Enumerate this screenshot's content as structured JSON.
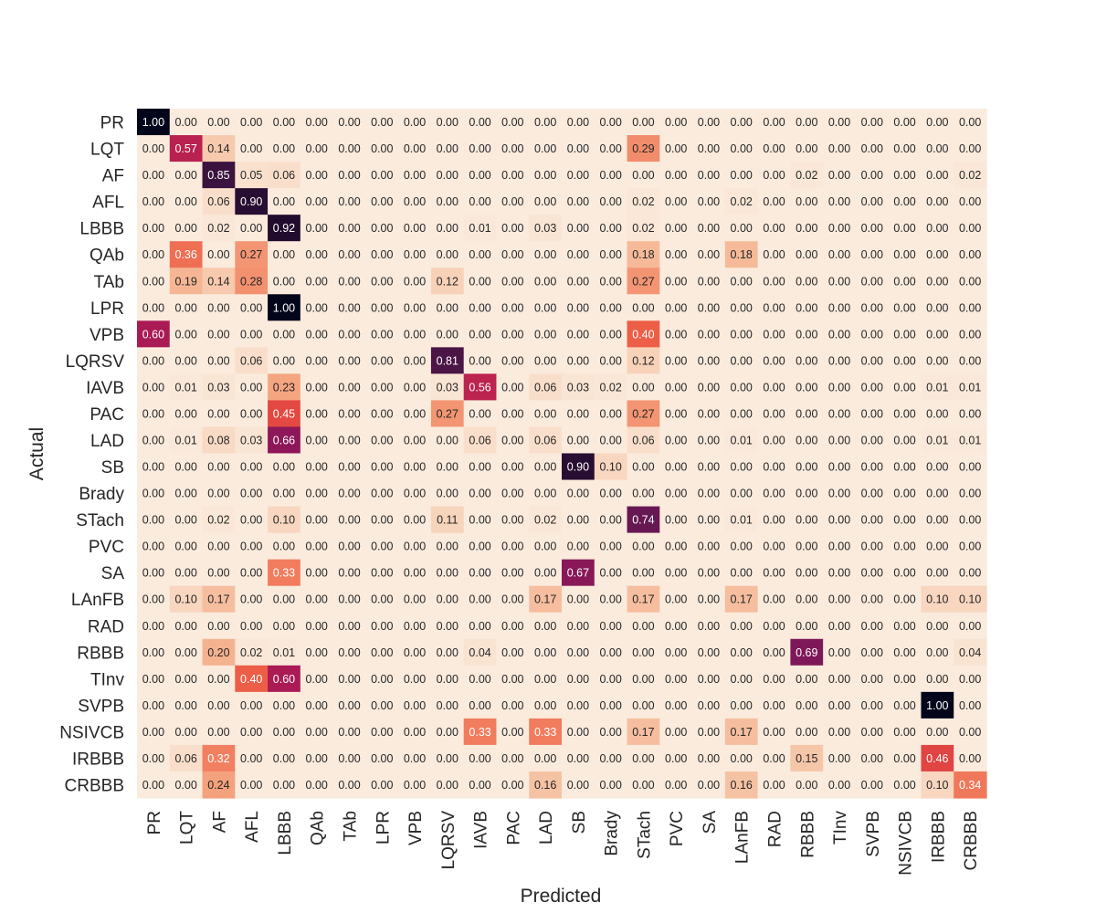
{
  "chart_data": {
    "type": "heatmap",
    "title": "",
    "xlabel": "Predicted",
    "ylabel": "Actual",
    "categories": [
      "PR",
      "LQT",
      "AF",
      "AFL",
      "LBBB",
      "QAb",
      "TAb",
      "LPR",
      "VPB",
      "LQRSV",
      "IAVB",
      "PAC",
      "LAD",
      "SB",
      "Brady",
      "STach",
      "PVC",
      "SA",
      "LAnFB",
      "RAD",
      "RBBB",
      "TInv",
      "SVPB",
      "NSIVCB",
      "IRBBB",
      "CRBBB"
    ],
    "value_range": [
      0,
      1
    ],
    "colormap": "rocket",
    "grid": false,
    "colorbar": false,
    "matrix": [
      [
        1.0,
        0.0,
        0.0,
        0.0,
        0.0,
        0.0,
        0.0,
        0.0,
        0.0,
        0.0,
        0.0,
        0.0,
        0.0,
        0.0,
        0.0,
        0.0,
        0.0,
        0.0,
        0.0,
        0.0,
        0.0,
        0.0,
        0.0,
        0.0,
        0.0,
        0.0
      ],
      [
        0.0,
        0.57,
        0.14,
        0.0,
        0.0,
        0.0,
        0.0,
        0.0,
        0.0,
        0.0,
        0.0,
        0.0,
        0.0,
        0.0,
        0.0,
        0.29,
        0.0,
        0.0,
        0.0,
        0.0,
        0.0,
        0.0,
        0.0,
        0.0,
        0.0,
        0.0
      ],
      [
        0.0,
        0.0,
        0.85,
        0.05,
        0.06,
        0.0,
        0.0,
        0.0,
        0.0,
        0.0,
        0.0,
        0.0,
        0.0,
        0.0,
        0.0,
        0.0,
        0.0,
        0.0,
        0.0,
        0.0,
        0.02,
        0.0,
        0.0,
        0.0,
        0.0,
        0.02
      ],
      [
        0.0,
        0.0,
        0.06,
        0.9,
        0.0,
        0.0,
        0.0,
        0.0,
        0.0,
        0.0,
        0.0,
        0.0,
        0.0,
        0.0,
        0.0,
        0.02,
        0.0,
        0.0,
        0.02,
        0.0,
        0.0,
        0.0,
        0.0,
        0.0,
        0.0,
        0.0
      ],
      [
        0.0,
        0.0,
        0.02,
        0.0,
        0.92,
        0.0,
        0.0,
        0.0,
        0.0,
        0.0,
        0.01,
        0.0,
        0.03,
        0.0,
        0.0,
        0.02,
        0.0,
        0.0,
        0.0,
        0.0,
        0.0,
        0.0,
        0.0,
        0.0,
        0.0,
        0.0
      ],
      [
        0.0,
        0.36,
        0.0,
        0.27,
        0.0,
        0.0,
        0.0,
        0.0,
        0.0,
        0.0,
        0.0,
        0.0,
        0.0,
        0.0,
        0.0,
        0.18,
        0.0,
        0.0,
        0.18,
        0.0,
        0.0,
        0.0,
        0.0,
        0.0,
        0.0,
        0.0
      ],
      [
        0.0,
        0.19,
        0.14,
        0.28,
        0.0,
        0.0,
        0.0,
        0.0,
        0.0,
        0.12,
        0.0,
        0.0,
        0.0,
        0.0,
        0.0,
        0.27,
        0.0,
        0.0,
        0.0,
        0.0,
        0.0,
        0.0,
        0.0,
        0.0,
        0.0,
        0.0
      ],
      [
        0.0,
        0.0,
        0.0,
        0.0,
        1.0,
        0.0,
        0.0,
        0.0,
        0.0,
        0.0,
        0.0,
        0.0,
        0.0,
        0.0,
        0.0,
        0.0,
        0.0,
        0.0,
        0.0,
        0.0,
        0.0,
        0.0,
        0.0,
        0.0,
        0.0,
        0.0
      ],
      [
        0.6,
        0.0,
        0.0,
        0.0,
        0.0,
        0.0,
        0.0,
        0.0,
        0.0,
        0.0,
        0.0,
        0.0,
        0.0,
        0.0,
        0.0,
        0.4,
        0.0,
        0.0,
        0.0,
        0.0,
        0.0,
        0.0,
        0.0,
        0.0,
        0.0,
        0.0
      ],
      [
        0.0,
        0.0,
        0.0,
        0.06,
        0.0,
        0.0,
        0.0,
        0.0,
        0.0,
        0.81,
        0.0,
        0.0,
        0.0,
        0.0,
        0.0,
        0.12,
        0.0,
        0.0,
        0.0,
        0.0,
        0.0,
        0.0,
        0.0,
        0.0,
        0.0,
        0.0
      ],
      [
        0.0,
        0.01,
        0.03,
        0.0,
        0.23,
        0.0,
        0.0,
        0.0,
        0.0,
        0.03,
        0.56,
        0.0,
        0.06,
        0.03,
        0.02,
        0.0,
        0.0,
        0.0,
        0.0,
        0.0,
        0.0,
        0.0,
        0.0,
        0.0,
        0.01,
        0.01
      ],
      [
        0.0,
        0.0,
        0.0,
        0.0,
        0.45,
        0.0,
        0.0,
        0.0,
        0.0,
        0.27,
        0.0,
        0.0,
        0.0,
        0.0,
        0.0,
        0.27,
        0.0,
        0.0,
        0.0,
        0.0,
        0.0,
        0.0,
        0.0,
        0.0,
        0.0,
        0.0
      ],
      [
        0.0,
        0.01,
        0.08,
        0.03,
        0.66,
        0.0,
        0.0,
        0.0,
        0.0,
        0.0,
        0.06,
        0.0,
        0.06,
        0.0,
        0.0,
        0.06,
        0.0,
        0.0,
        0.01,
        0.0,
        0.0,
        0.0,
        0.0,
        0.0,
        0.01,
        0.01
      ],
      [
        0.0,
        0.0,
        0.0,
        0.0,
        0.0,
        0.0,
        0.0,
        0.0,
        0.0,
        0.0,
        0.0,
        0.0,
        0.0,
        0.9,
        0.1,
        0.0,
        0.0,
        0.0,
        0.0,
        0.0,
        0.0,
        0.0,
        0.0,
        0.0,
        0.0,
        0.0
      ],
      [
        0.0,
        0.0,
        0.0,
        0.0,
        0.0,
        0.0,
        0.0,
        0.0,
        0.0,
        0.0,
        0.0,
        0.0,
        0.0,
        0.0,
        0.0,
        0.0,
        0.0,
        0.0,
        0.0,
        0.0,
        0.0,
        0.0,
        0.0,
        0.0,
        0.0,
        0.0
      ],
      [
        0.0,
        0.0,
        0.02,
        0.0,
        0.1,
        0.0,
        0.0,
        0.0,
        0.0,
        0.11,
        0.0,
        0.0,
        0.02,
        0.0,
        0.0,
        0.74,
        0.0,
        0.0,
        0.01,
        0.0,
        0.0,
        0.0,
        0.0,
        0.0,
        0.0,
        0.0
      ],
      [
        0.0,
        0.0,
        0.0,
        0.0,
        0.0,
        0.0,
        0.0,
        0.0,
        0.0,
        0.0,
        0.0,
        0.0,
        0.0,
        0.0,
        0.0,
        0.0,
        0.0,
        0.0,
        0.0,
        0.0,
        0.0,
        0.0,
        0.0,
        0.0,
        0.0,
        0.0
      ],
      [
        0.0,
        0.0,
        0.0,
        0.0,
        0.33,
        0.0,
        0.0,
        0.0,
        0.0,
        0.0,
        0.0,
        0.0,
        0.0,
        0.67,
        0.0,
        0.0,
        0.0,
        0.0,
        0.0,
        0.0,
        0.0,
        0.0,
        0.0,
        0.0,
        0.0,
        0.0
      ],
      [
        0.0,
        0.1,
        0.17,
        0.0,
        0.0,
        0.0,
        0.0,
        0.0,
        0.0,
        0.0,
        0.0,
        0.0,
        0.17,
        0.0,
        0.0,
        0.17,
        0.0,
        0.0,
        0.17,
        0.0,
        0.0,
        0.0,
        0.0,
        0.0,
        0.1,
        0.1
      ],
      [
        0.0,
        0.0,
        0.0,
        0.0,
        0.0,
        0.0,
        0.0,
        0.0,
        0.0,
        0.0,
        0.0,
        0.0,
        0.0,
        0.0,
        0.0,
        0.0,
        0.0,
        0.0,
        0.0,
        0.0,
        0.0,
        0.0,
        0.0,
        0.0,
        0.0,
        0.0
      ],
      [
        0.0,
        0.0,
        0.2,
        0.02,
        0.01,
        0.0,
        0.0,
        0.0,
        0.0,
        0.0,
        0.04,
        0.0,
        0.0,
        0.0,
        0.0,
        0.0,
        0.0,
        0.0,
        0.0,
        0.0,
        0.69,
        0.0,
        0.0,
        0.0,
        0.0,
        0.04
      ],
      [
        0.0,
        0.0,
        0.0,
        0.4,
        0.6,
        0.0,
        0.0,
        0.0,
        0.0,
        0.0,
        0.0,
        0.0,
        0.0,
        0.0,
        0.0,
        0.0,
        0.0,
        0.0,
        0.0,
        0.0,
        0.0,
        0.0,
        0.0,
        0.0,
        0.0,
        0.0
      ],
      [
        0.0,
        0.0,
        0.0,
        0.0,
        0.0,
        0.0,
        0.0,
        0.0,
        0.0,
        0.0,
        0.0,
        0.0,
        0.0,
        0.0,
        0.0,
        0.0,
        0.0,
        0.0,
        0.0,
        0.0,
        0.0,
        0.0,
        0.0,
        0.0,
        1.0,
        0.0
      ],
      [
        0.0,
        0.0,
        0.0,
        0.0,
        0.0,
        0.0,
        0.0,
        0.0,
        0.0,
        0.0,
        0.33,
        0.0,
        0.33,
        0.0,
        0.0,
        0.17,
        0.0,
        0.0,
        0.17,
        0.0,
        0.0,
        0.0,
        0.0,
        0.0,
        0.0,
        0.0
      ],
      [
        0.0,
        0.06,
        0.32,
        0.0,
        0.0,
        0.0,
        0.0,
        0.0,
        0.0,
        0.0,
        0.0,
        0.0,
        0.0,
        0.0,
        0.0,
        0.0,
        0.0,
        0.0,
        0.0,
        0.0,
        0.15,
        0.0,
        0.0,
        0.0,
        0.46,
        0.0
      ],
      [
        0.0,
        0.0,
        0.24,
        0.0,
        0.0,
        0.0,
        0.0,
        0.0,
        0.0,
        0.0,
        0.0,
        0.0,
        0.16,
        0.0,
        0.0,
        0.0,
        0.0,
        0.0,
        0.16,
        0.0,
        0.0,
        0.0,
        0.0,
        0.0,
        0.1,
        0.34
      ]
    ]
  }
}
